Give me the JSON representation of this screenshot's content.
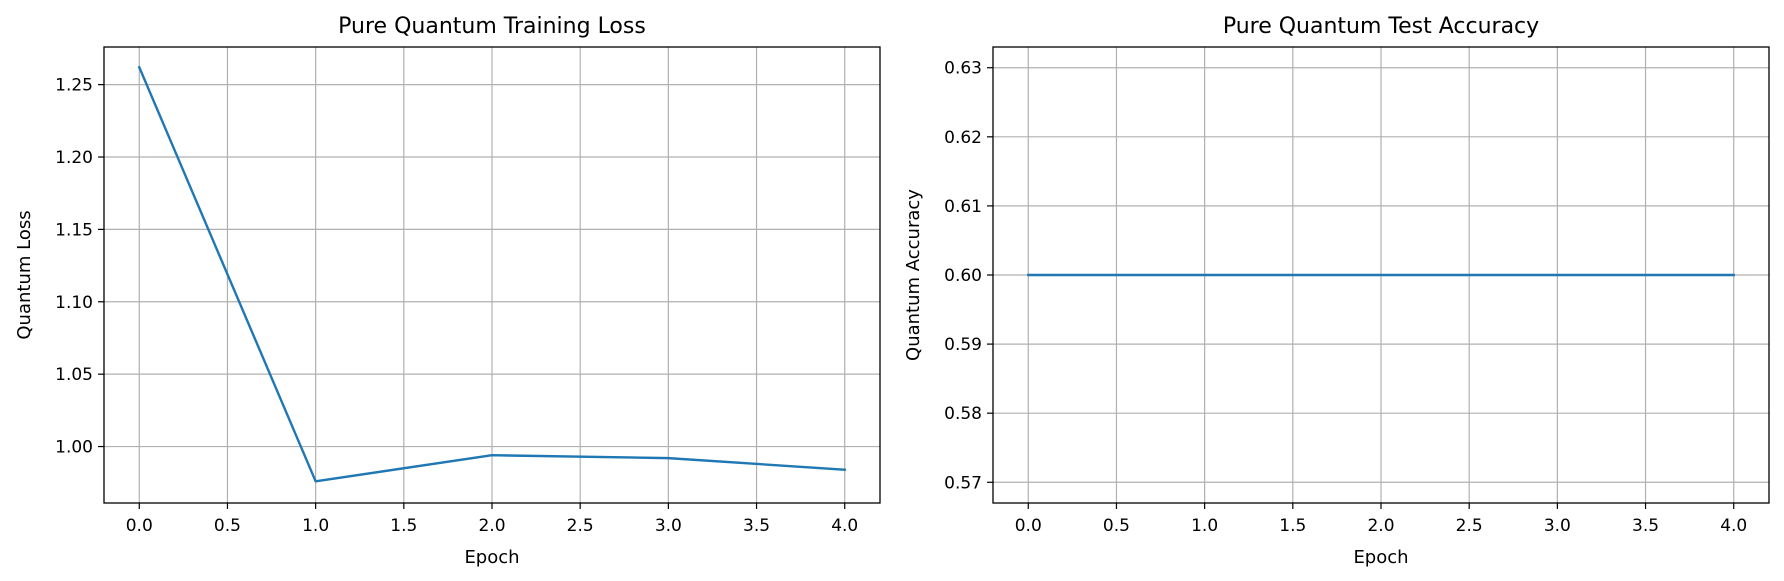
{
  "chart_data": [
    {
      "type": "line",
      "title": "Pure Quantum Training Loss",
      "xlabel": "Epoch",
      "ylabel": "Quantum Loss",
      "x": [
        0,
        1,
        2,
        3,
        4
      ],
      "series": [
        {
          "values": [
            1.262,
            0.976,
            0.994,
            0.992,
            0.984
          ]
        }
      ],
      "xlim": [
        -0.2,
        4.2
      ],
      "ylim": [
        0.961,
        1.276
      ],
      "xticks": [
        "0.0",
        "0.5",
        "1.0",
        "1.5",
        "2.0",
        "2.5",
        "3.0",
        "3.5",
        "4.0"
      ],
      "yticks": [
        "1.00",
        "1.05",
        "1.10",
        "1.15",
        "1.20",
        "1.25"
      ],
      "grid": true,
      "line_color": "#1f77b4"
    },
    {
      "type": "line",
      "title": "Pure Quantum Test Accuracy",
      "xlabel": "Epoch",
      "ylabel": "Quantum Accuracy",
      "x": [
        0,
        1,
        2,
        3,
        4
      ],
      "series": [
        {
          "values": [
            0.6,
            0.6,
            0.6,
            0.6,
            0.6
          ]
        }
      ],
      "xlim": [
        -0.2,
        4.2
      ],
      "ylim": [
        0.567,
        0.633
      ],
      "xticks": [
        "0.0",
        "0.5",
        "1.0",
        "1.5",
        "2.0",
        "2.5",
        "3.0",
        "3.5",
        "4.0"
      ],
      "yticks": [
        "0.57",
        "0.58",
        "0.59",
        "0.60",
        "0.61",
        "0.62",
        "0.63"
      ],
      "grid": true,
      "line_color": "#1f77b4"
    }
  ]
}
